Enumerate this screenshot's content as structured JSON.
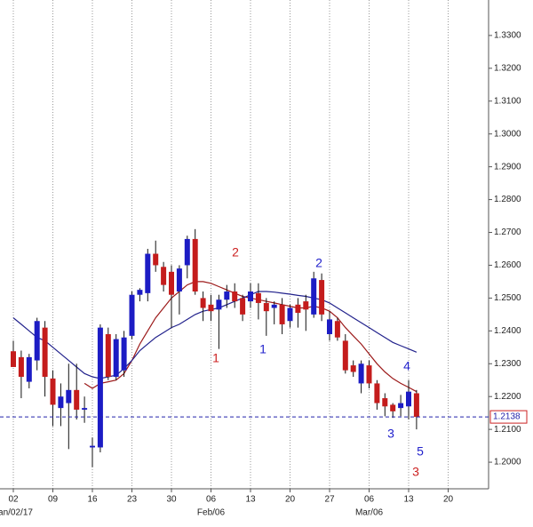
{
  "chart_data": {
    "type": "candlestick",
    "categories": [
      "02",
      null,
      null,
      null,
      null,
      "09",
      null,
      null,
      null,
      null,
      "16",
      null,
      null,
      null,
      null,
      "23",
      null,
      null,
      null,
      null,
      "30",
      null,
      null,
      null,
      null,
      "06",
      null,
      null,
      null,
      null,
      "13",
      null,
      null,
      null,
      null,
      "20",
      null,
      null,
      null,
      null,
      "27",
      null,
      null,
      null,
      null,
      "06",
      null,
      null,
      null,
      null,
      "13",
      null,
      null,
      null,
      null,
      "20",
      null,
      null,
      null,
      null
    ],
    "x_sublabels": [
      "Jan/02/17",
      null,
      null,
      null,
      null,
      null,
      null,
      null,
      null,
      null,
      null,
      null,
      null,
      null,
      null,
      null,
      null,
      null,
      null,
      null,
      null,
      null,
      null,
      null,
      null,
      "Feb/06",
      null,
      null,
      null,
      null,
      null,
      null,
      null,
      null,
      null,
      null,
      null,
      null,
      null,
      null,
      null,
      null,
      null,
      null,
      null,
      "Mar/06",
      null,
      null,
      null,
      null,
      null,
      null,
      null,
      null,
      null,
      null,
      null,
      null,
      null,
      null
    ],
    "open": [
      1.2338,
      1.232,
      1.2245,
      1.231,
      1.241,
      1.2255,
      1.2165,
      1.218,
      1.222,
      1.216,
      1.2045,
      1.2045,
      1.239,
      1.226,
      1.228,
      1.2385,
      1.251,
      1.2515,
      1.2635,
      1.2595,
      1.258,
      1.252,
      1.26,
      1.268,
      1.25,
      1.248,
      1.2465,
      1.2495,
      1.252,
      1.25,
      1.249,
      1.2515,
      1.2485,
      1.247,
      1.248,
      1.243,
      1.248,
      1.249,
      1.245,
      1.2555,
      1.239,
      1.243,
      1.237,
      1.2295,
      1.224,
      1.2295,
      1.224,
      1.2195,
      1.2175,
      1.2165,
      1.217,
      1.221,
      null,
      null,
      null,
      null,
      null,
      null,
      null,
      null
    ],
    "high": [
      1.237,
      1.234,
      1.233,
      1.244,
      1.243,
      1.228,
      1.224,
      1.23,
      1.23,
      1.22,
      1.2075,
      1.242,
      1.241,
      1.239,
      1.24,
      1.252,
      1.253,
      1.265,
      1.2675,
      1.261,
      1.26,
      1.26,
      1.269,
      1.271,
      1.252,
      1.251,
      1.251,
      1.254,
      1.2545,
      1.251,
      1.2545,
      1.2545,
      1.25,
      1.249,
      1.25,
      1.248,
      1.25,
      1.251,
      1.258,
      1.2575,
      1.246,
      1.244,
      1.239,
      1.231,
      1.231,
      1.231,
      1.225,
      1.221,
      1.218,
      1.2205,
      1.225,
      1.222,
      null,
      null,
      null,
      null,
      null,
      null,
      null,
      null
    ],
    "low": [
      1.229,
      1.2195,
      1.2225,
      1.228,
      1.22,
      1.211,
      1.211,
      1.204,
      1.213,
      1.212,
      1.1985,
      1.203,
      1.225,
      1.225,
      1.226,
      1.2375,
      1.249,
      1.249,
      1.258,
      1.252,
      1.241,
      1.245,
      1.256,
      1.251,
      1.243,
      1.243,
      1.2345,
      1.247,
      1.247,
      1.243,
      1.247,
      1.2435,
      1.2385,
      1.242,
      1.239,
      1.241,
      1.241,
      1.24,
      1.244,
      1.243,
      1.237,
      1.237,
      1.227,
      1.226,
      1.221,
      1.2225,
      1.216,
      1.214,
      1.2135,
      1.214,
      1.213,
      1.21,
      null,
      null,
      null,
      null,
      null,
      null,
      null,
      null
    ],
    "close": [
      1.229,
      1.226,
      1.232,
      1.243,
      1.226,
      1.2175,
      1.22,
      1.222,
      1.216,
      1.2165,
      1.205,
      1.241,
      1.226,
      1.2375,
      1.238,
      1.251,
      1.2525,
      1.2635,
      1.26,
      1.254,
      1.251,
      1.259,
      1.268,
      1.252,
      1.247,
      1.246,
      1.2495,
      1.252,
      1.249,
      1.245,
      1.252,
      1.2485,
      1.246,
      1.248,
      1.242,
      1.247,
      1.2455,
      1.2465,
      1.256,
      1.245,
      1.2435,
      1.238,
      1.228,
      1.2275,
      1.23,
      1.224,
      1.218,
      1.217,
      1.2155,
      1.218,
      1.2215,
      1.2138,
      null,
      null,
      null,
      null,
      null,
      null,
      null,
      null
    ],
    "up_color": "#1c1cc4",
    "down_color": "#c41c1c",
    "moving_averages": [
      {
        "color": "#9c1a1a",
        "values": [
          null,
          null,
          null,
          null,
          null,
          null,
          null,
          null,
          null,
          1.224,
          1.2225,
          1.224,
          1.2245,
          1.225,
          1.227,
          1.231,
          1.236,
          1.24,
          1.244,
          1.247,
          1.25,
          1.252,
          1.254,
          1.255,
          1.255,
          1.2545,
          1.2535,
          1.2525,
          1.2515,
          1.2505,
          1.25,
          1.2495,
          1.249,
          1.2485,
          1.248,
          1.2475,
          1.247,
          1.247,
          1.2475,
          1.247,
          1.246,
          1.244,
          1.241,
          1.2385,
          1.236,
          1.233,
          1.23,
          1.2275,
          1.2255,
          1.224,
          1.2228,
          1.2215,
          null,
          null,
          null,
          null,
          null,
          null,
          null,
          null
        ]
      },
      {
        "color": "#22228c",
        "values": [
          1.244,
          1.242,
          1.24,
          1.238,
          1.237,
          1.235,
          1.233,
          1.231,
          1.229,
          1.227,
          1.226,
          1.2255,
          1.226,
          1.2265,
          1.2285,
          1.231,
          1.234,
          1.236,
          1.238,
          1.2395,
          1.241,
          1.242,
          1.2435,
          1.245,
          1.246,
          1.2465,
          1.247,
          1.248,
          1.249,
          1.25,
          1.251,
          1.252,
          1.252,
          1.2518,
          1.2515,
          1.2512,
          1.2508,
          1.2505,
          1.25,
          1.2495,
          1.2485,
          1.247,
          1.2455,
          1.244,
          1.2425,
          1.241,
          1.2395,
          1.238,
          1.2365,
          1.2355,
          1.2345,
          1.2335,
          null,
          null,
          null,
          null,
          null,
          null,
          null,
          null
        ]
      }
    ],
    "ylim": [
      1.1919,
      1.3408
    ],
    "yticks": [
      {
        "value": 1.2,
        "label": "1.2000"
      },
      {
        "value": 1.21,
        "label": "1.2100"
      },
      {
        "value": 1.22,
        "label": "1.2200"
      },
      {
        "value": 1.23,
        "label": "1.2300"
      },
      {
        "value": 1.24,
        "label": "1.2400"
      },
      {
        "value": 1.25,
        "label": "1.2500"
      },
      {
        "value": 1.26,
        "label": "1.2600"
      },
      {
        "value": 1.27,
        "label": "1.2700"
      },
      {
        "value": 1.28,
        "label": "1.2800"
      },
      {
        "value": 1.29,
        "label": "1.2900"
      },
      {
        "value": 1.3,
        "label": "1.3000"
      },
      {
        "value": 1.31,
        "label": "1.3100"
      },
      {
        "value": 1.32,
        "label": "1.3200"
      },
      {
        "value": 1.33,
        "label": "1.3300"
      }
    ],
    "last_price": 1.2138,
    "last_price_color": "#2222aa",
    "grid_x": true,
    "annotations": [
      {
        "text": "1",
        "color": "#cc2222"
      },
      {
        "text": "2",
        "color": "#cc2222"
      },
      {
        "text": "1",
        "color": "#2222cc"
      },
      {
        "text": "2",
        "color": "#2222cc"
      },
      {
        "text": "4",
        "color": "#2222cc"
      },
      {
        "text": "3",
        "color": "#2222cc"
      },
      {
        "text": "5",
        "color": "#2222cc"
      },
      {
        "text": "3",
        "color": "#cc2222"
      }
    ]
  }
}
